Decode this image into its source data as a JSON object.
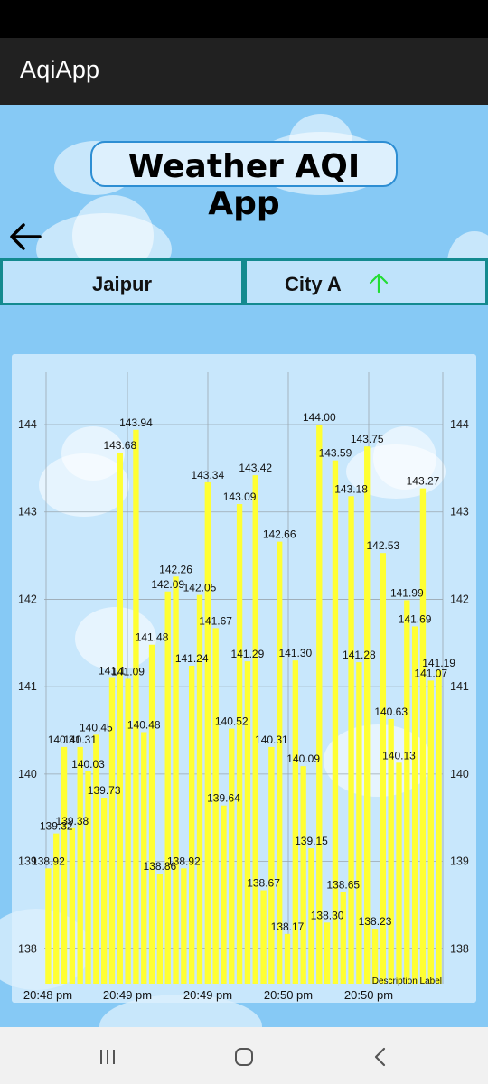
{
  "app_bar": {
    "title": "AqiApp"
  },
  "header": {
    "title": "Weather AQI App"
  },
  "tabs": [
    {
      "label": "Jaipur"
    },
    {
      "label": "City A"
    }
  ],
  "colors": {
    "bar": "#ffff33",
    "accent_arrow": "#22dd33",
    "tab_border": "#138a8f"
  },
  "chart_data": {
    "type": "bar",
    "title": "",
    "description": "Description Label",
    "ylim": [
      137.6,
      144.6
    ],
    "y_ticks": [
      138,
      139,
      140,
      141,
      142,
      143,
      144
    ],
    "x_tick_labels": [
      "20:48 pm",
      "20:49 pm",
      "20:49 pm",
      "20:50 pm",
      "20:50 pm"
    ],
    "grid": true,
    "series": [
      {
        "values": [
          138.92,
          139.32,
          140.31,
          139.38,
          140.31,
          140.03,
          140.45,
          139.73,
          141.1,
          143.68,
          141.09,
          143.94,
          140.48,
          141.48,
          138.86,
          142.09,
          142.26,
          138.92,
          141.24,
          142.05,
          143.34,
          141.67,
          139.64,
          140.52,
          143.09,
          141.29,
          143.42,
          138.67,
          140.31,
          142.66,
          138.17,
          141.3,
          140.09,
          139.15,
          144.0,
          138.3,
          143.59,
          138.65,
          143.18,
          141.28,
          143.75,
          138.23,
          142.53,
          140.63,
          140.13,
          141.99,
          141.69,
          143.27,
          141.07,
          141.19
        ]
      }
    ],
    "labels": [
      {
        "text": "138.92",
        "i": 0
      },
      {
        "text": "139.32",
        "i": 1
      },
      {
        "text": "140.31",
        "i": 2
      },
      {
        "text": "139.38",
        "i": 3
      },
      {
        "text": "140.31",
        "i": 4
      },
      {
        "text": "140.03",
        "i": 5
      },
      {
        "text": "140.45",
        "i": 6
      },
      {
        "text": "139.73",
        "i": 7
      },
      {
        "text": "141.1",
        "i": 8
      },
      {
        "text": "143.68",
        "i": 9
      },
      {
        "text": "141.09",
        "i": 10
      },
      {
        "text": "143.94",
        "i": 11
      },
      {
        "text": "140.48",
        "i": 12
      },
      {
        "text": "141.48",
        "i": 13
      },
      {
        "text": "138.86",
        "i": 14
      },
      {
        "text": "142.09",
        "i": 15
      },
      {
        "text": "142.26",
        "i": 16
      },
      {
        "text": "138.92",
        "i": 17
      },
      {
        "text": "141.24",
        "i": 18
      },
      {
        "text": "142.05",
        "i": 19
      },
      {
        "text": "143.34",
        "i": 20
      },
      {
        "text": "141.67",
        "i": 21
      },
      {
        "text": "139.64",
        "i": 22
      },
      {
        "text": "140.52",
        "i": 23
      },
      {
        "text": "143.09",
        "i": 24
      },
      {
        "text": "141.29",
        "i": 25
      },
      {
        "text": "143.42",
        "i": 26
      },
      {
        "text": "138.67",
        "i": 27
      },
      {
        "text": "140.31",
        "i": 28
      },
      {
        "text": "142.66",
        "i": 29
      },
      {
        "text": "138.17",
        "i": 30
      },
      {
        "text": "141.30",
        "i": 31
      },
      {
        "text": "140.09",
        "i": 32
      },
      {
        "text": "139.15",
        "i": 33
      },
      {
        "text": "144.00",
        "i": 34
      },
      {
        "text": "138.30",
        "i": 35
      },
      {
        "text": "143.59",
        "i": 36
      },
      {
        "text": "138.65",
        "i": 37
      },
      {
        "text": "143.18",
        "i": 38
      },
      {
        "text": "141.28",
        "i": 39
      },
      {
        "text": "143.75",
        "i": 40
      },
      {
        "text": "138.23",
        "i": 41
      },
      {
        "text": "142.53",
        "i": 42
      },
      {
        "text": "140.63",
        "i": 43
      },
      {
        "text": "140.13",
        "i": 44
      },
      {
        "text": "141.99",
        "i": 45
      },
      {
        "text": "141.69",
        "i": 46
      },
      {
        "text": "143.27",
        "i": 47
      },
      {
        "text": "141.07",
        "i": 48
      },
      {
        "text": "141.19",
        "i": 49
      }
    ]
  }
}
